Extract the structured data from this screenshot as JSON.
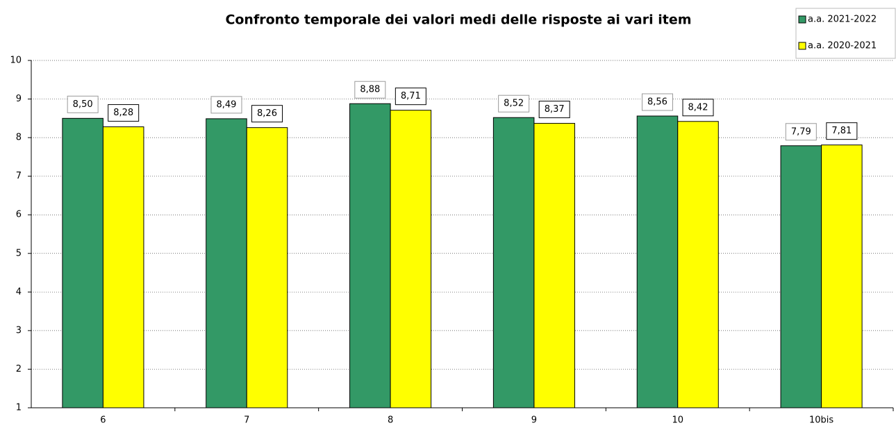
{
  "chart_data": {
    "type": "bar",
    "title": "Confronto temporale dei valori medi delle risposte ai vari item",
    "categories": [
      "6",
      "7",
      "8",
      "9",
      "10",
      "10bis"
    ],
    "series": [
      {
        "name": "a.a. 2021-2022",
        "color": "#339966",
        "values": [
          8.5,
          8.49,
          8.88,
          8.52,
          8.56,
          7.79
        ],
        "value_labels": [
          "8,50",
          "8,49",
          "8,88",
          "8,52",
          "8,56",
          "7,79"
        ]
      },
      {
        "name": "a.a. 2020-2021",
        "color": "#ffff00",
        "values": [
          8.28,
          8.26,
          8.71,
          8.37,
          8.42,
          7.81
        ],
        "value_labels": [
          "8,28",
          "8,26",
          "8,71",
          "8,37",
          "8,42",
          "7,81"
        ]
      }
    ],
    "ylim": [
      1,
      10
    ],
    "yticks": [
      1,
      2,
      3,
      4,
      5,
      6,
      7,
      8,
      9,
      10
    ],
    "grid": true,
    "legend": "top-right"
  }
}
